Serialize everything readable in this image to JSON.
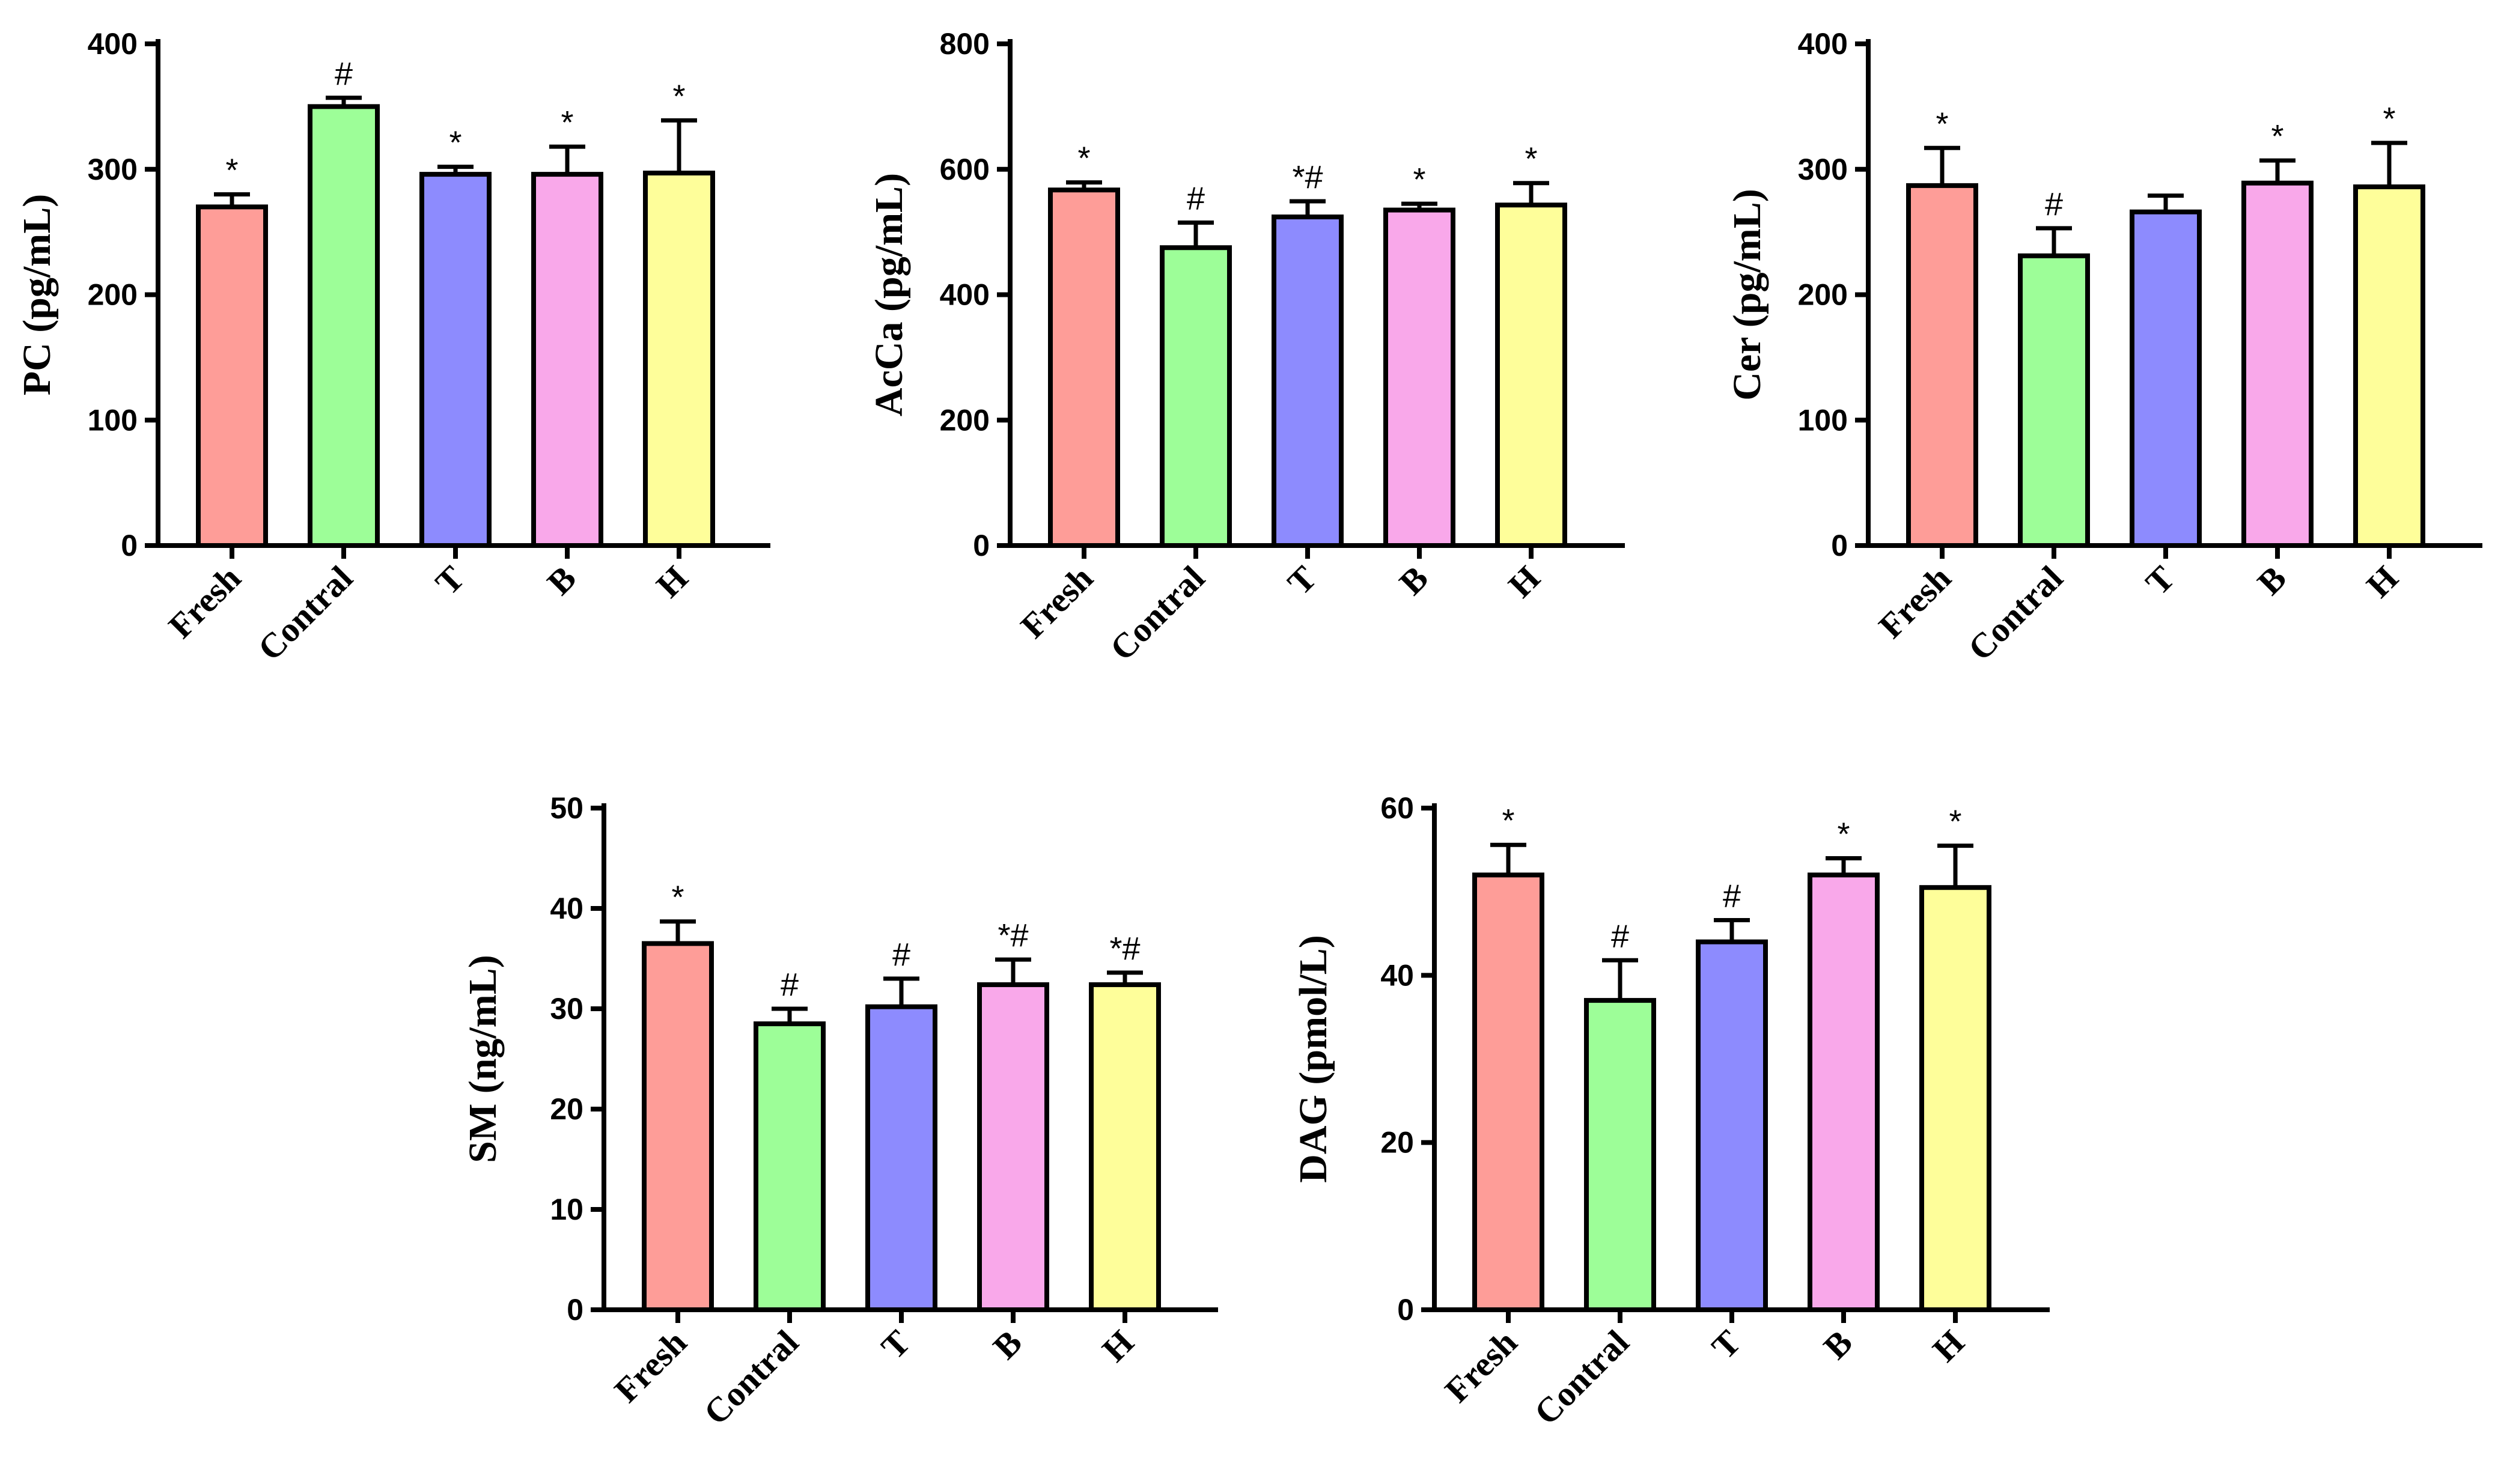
{
  "chart_data": [
    {
      "type": "bar",
      "ylabel": "PC (pg/mL)",
      "ylim": [
        0,
        400
      ],
      "yticks": [
        0,
        100,
        200,
        300,
        400
      ],
      "categories": [
        "Fresh",
        "Contral",
        "T",
        "B",
        "H"
      ],
      "values": [
        270,
        350,
        296,
        296,
        297
      ],
      "errors": [
        10,
        7,
        6,
        22,
        42
      ],
      "annotations": [
        "*",
        "#",
        "*",
        "*",
        "*"
      ]
    },
    {
      "type": "bar",
      "ylabel": "AcCa (pg/mL)",
      "ylim": [
        0,
        800
      ],
      "yticks": [
        0,
        200,
        400,
        600,
        800
      ],
      "categories": [
        "Fresh",
        "Contral",
        "T",
        "B",
        "H"
      ],
      "values": [
        567,
        475,
        524,
        535,
        543
      ],
      "errors": [
        12,
        40,
        25,
        10,
        35
      ],
      "annotations": [
        "*",
        "#",
        "*#",
        "*",
        "*"
      ]
    },
    {
      "type": "bar",
      "ylabel": "Cer (pg/mL)",
      "ylim": [
        0,
        400
      ],
      "yticks": [
        0,
        100,
        200,
        300,
        400
      ],
      "categories": [
        "Fresh",
        "Contral",
        "T",
        "B",
        "H"
      ],
      "values": [
        287,
        231,
        266,
        289,
        286
      ],
      "errors": [
        30,
        22,
        13,
        18,
        35
      ],
      "annotations": [
        "*",
        "#",
        "",
        "*",
        "*"
      ]
    },
    {
      "type": "bar",
      "ylabel": "SM (ng/mL)",
      "ylim": [
        0,
        50
      ],
      "yticks": [
        0,
        10,
        20,
        30,
        40,
        50
      ],
      "categories": [
        "Fresh",
        "Contral",
        "T",
        "B",
        "H"
      ],
      "values": [
        36.5,
        28.5,
        30.2,
        32.4,
        32.4
      ],
      "errors": [
        2.2,
        1.5,
        2.8,
        2.5,
        1.2
      ],
      "annotations": [
        "*",
        "#",
        "#",
        "*#",
        "*#"
      ]
    },
    {
      "type": "bar",
      "ylabel": "DAG (pmol/L)",
      "ylim": [
        0,
        60
      ],
      "yticks": [
        0,
        20,
        40,
        60
      ],
      "categories": [
        "Fresh",
        "Contral",
        "T",
        "B",
        "H"
      ],
      "values": [
        52,
        37,
        44,
        52,
        50.5
      ],
      "errors": [
        3.6,
        4.8,
        2.6,
        2.0,
        5.0
      ],
      "annotations": [
        "*",
        "#",
        "#",
        "*",
        "*"
      ]
    }
  ],
  "colors": [
    "#fe9d98",
    "#9dfe98",
    "#8d8bfe",
    "#f9a8ea",
    "#fefe9a"
  ]
}
